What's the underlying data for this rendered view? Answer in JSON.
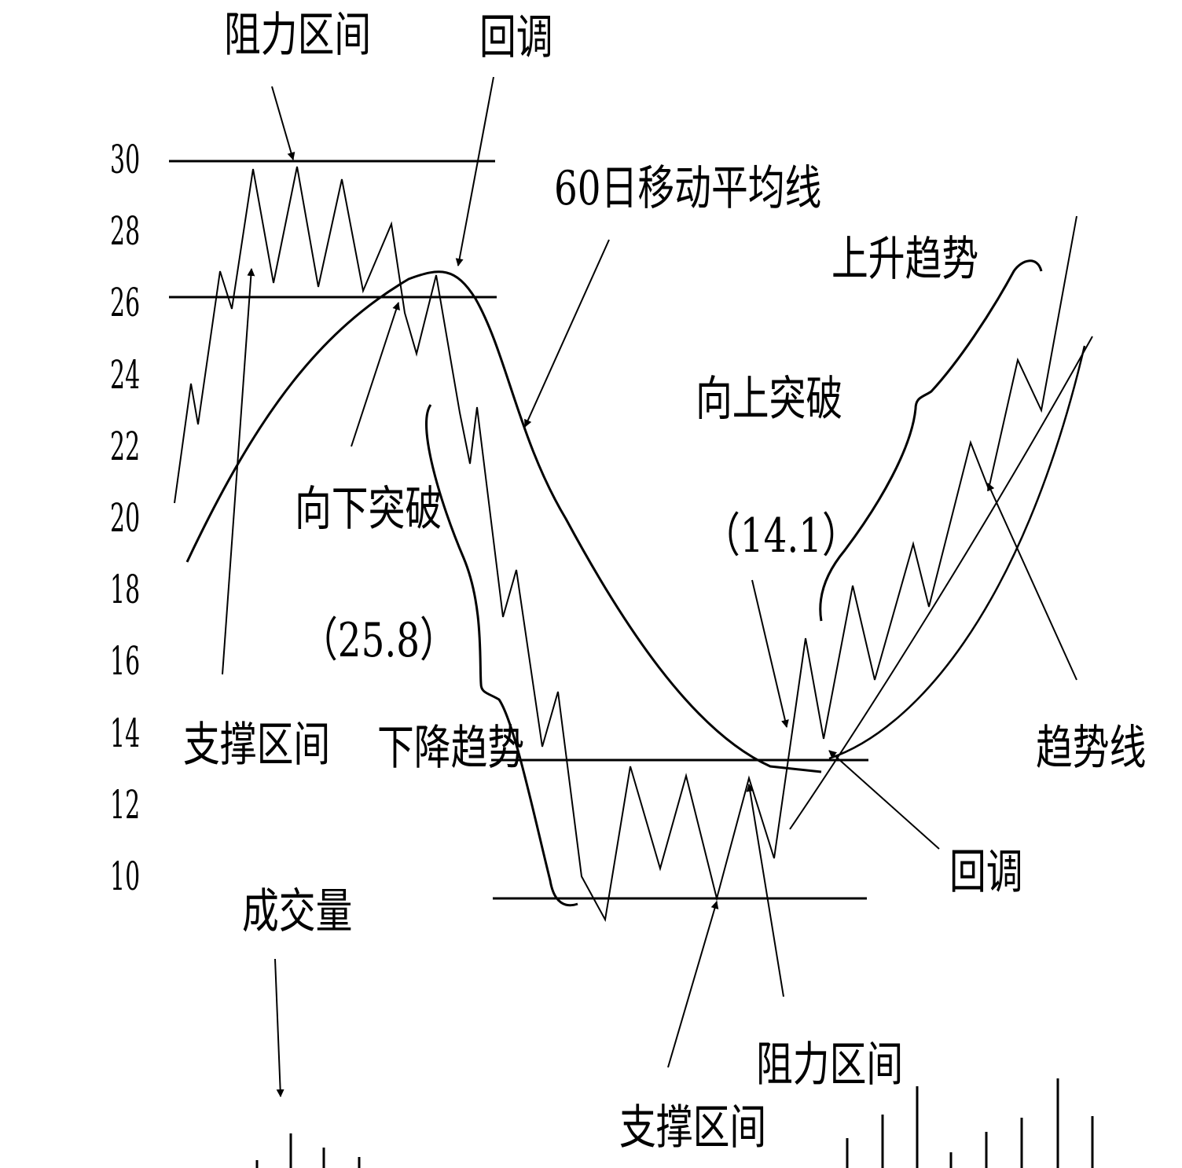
{
  "y_axis": {
    "ticks": [
      "30",
      "28",
      "26",
      "24",
      "22",
      "20",
      "18",
      "16",
      "14",
      "12",
      "10"
    ]
  },
  "labels": {
    "resistance_top": "阻力区间",
    "pullback_top": "回调",
    "ma60": "60日移动平均线",
    "uptrend": "上升趋势",
    "upward_breakout": "向上突破",
    "upward_breakout_value": "（14.1）",
    "downward_breakout": "向下突破",
    "downward_breakout_value": "（25.8）",
    "support_top": "支撑区间",
    "downtrend": "下降趋势",
    "trendline": "趋势线",
    "pullback_bottom": "回调",
    "volume": "成交量",
    "resistance_bottom": "阻力区间",
    "support_bottom": "支撑区间"
  },
  "colors": {
    "ink": "#000000",
    "background": "#ffffff"
  }
}
